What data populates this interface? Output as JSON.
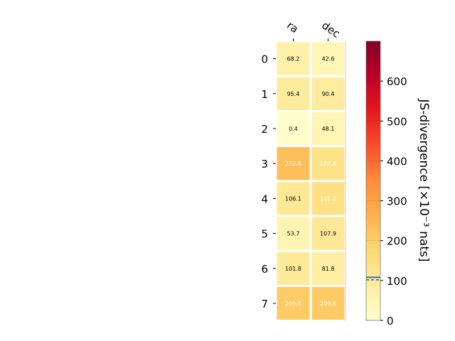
{
  "chart_data": {
    "type": "heatmap",
    "columns": [
      "ra",
      "dec"
    ],
    "rows": [
      "0",
      "1",
      "2",
      "3",
      "4",
      "5",
      "6",
      "7"
    ],
    "values": [
      [
        68.2,
        42.6
      ],
      [
        95.4,
        90.4
      ],
      [
        0.4,
        48.1
      ],
      [
        232.6,
        137.8
      ],
      [
        106.1,
        141.2
      ],
      [
        53.7,
        107.9
      ],
      [
        101.8,
        81.8
      ],
      [
        205.8,
        209.6
      ]
    ],
    "value_labels": [
      [
        "68.2",
        "42.6"
      ],
      [
        "95.4",
        "90.4"
      ],
      [
        "0.4",
        "48.1"
      ],
      [
        "232.6",
        "137.8"
      ],
      [
        "106.1",
        "141.2"
      ],
      [
        "53.7",
        "107.9"
      ],
      [
        "101.8",
        "81.8"
      ],
      [
        "205.8",
        "209.6"
      ]
    ],
    "colorbar": {
      "label": "JS-divergence [×10⁻³ nats]",
      "range": [
        0,
        700
      ],
      "ticks": [
        "0",
        "100",
        "200",
        "300",
        "400",
        "500",
        "600"
      ],
      "tick_values": [
        0,
        100,
        200,
        300,
        400,
        500,
        600
      ],
      "colormap": "YlOrRd",
      "reference_line": 108,
      "reference_dashed": 100
    }
  }
}
